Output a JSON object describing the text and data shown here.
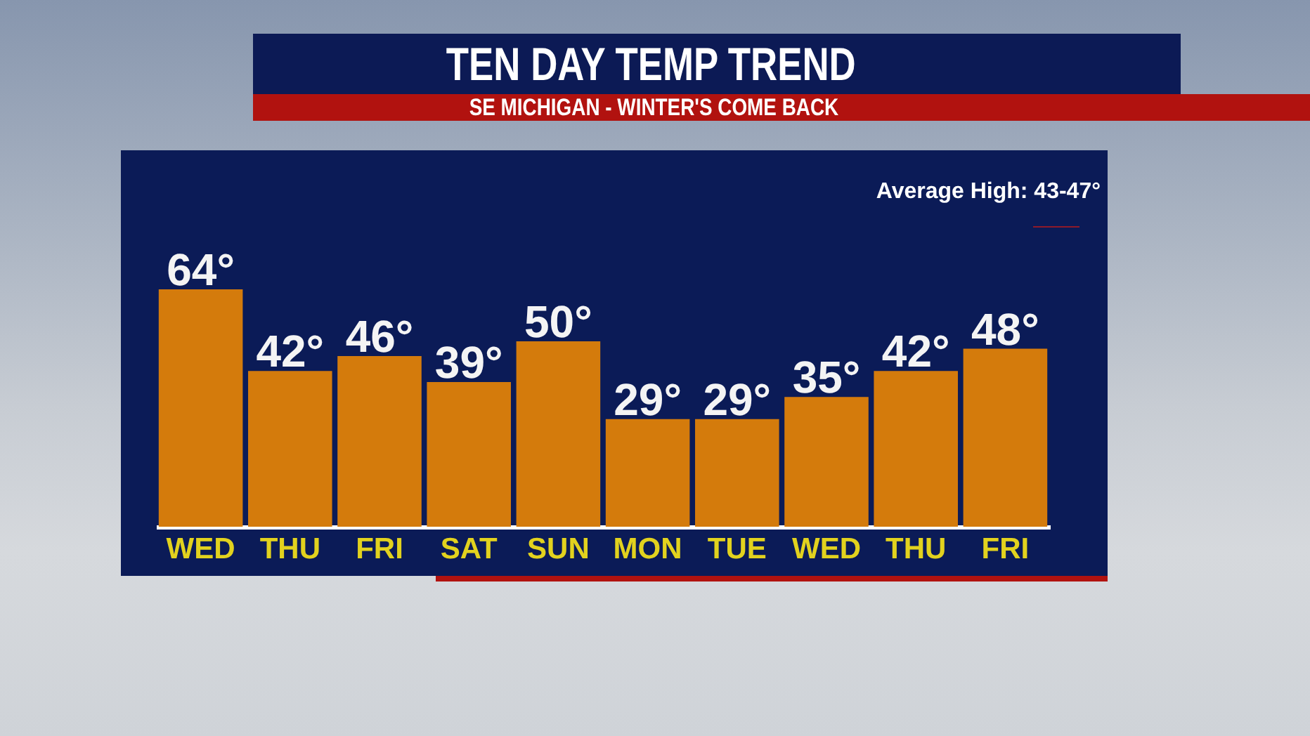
{
  "chart_data": {
    "type": "bar",
    "title": "TEN DAY TEMP TREND",
    "subtitle": "SE MICHIGAN - WINTER'S COME BACK",
    "annotations": [
      "Average High: 43-47°"
    ],
    "categories": [
      "WED",
      "THU",
      "FRI",
      "SAT",
      "SUN",
      "MON",
      "TUE",
      "WED",
      "THU",
      "FRI"
    ],
    "values": [
      64,
      42,
      46,
      39,
      50,
      29,
      29,
      35,
      42,
      48
    ],
    "color": "#d47b0c",
    "value_labels": [
      "64°",
      "42°",
      "46°",
      "39°",
      "50°",
      "29°",
      "29°",
      "35°",
      "42°",
      "48°"
    ]
  }
}
